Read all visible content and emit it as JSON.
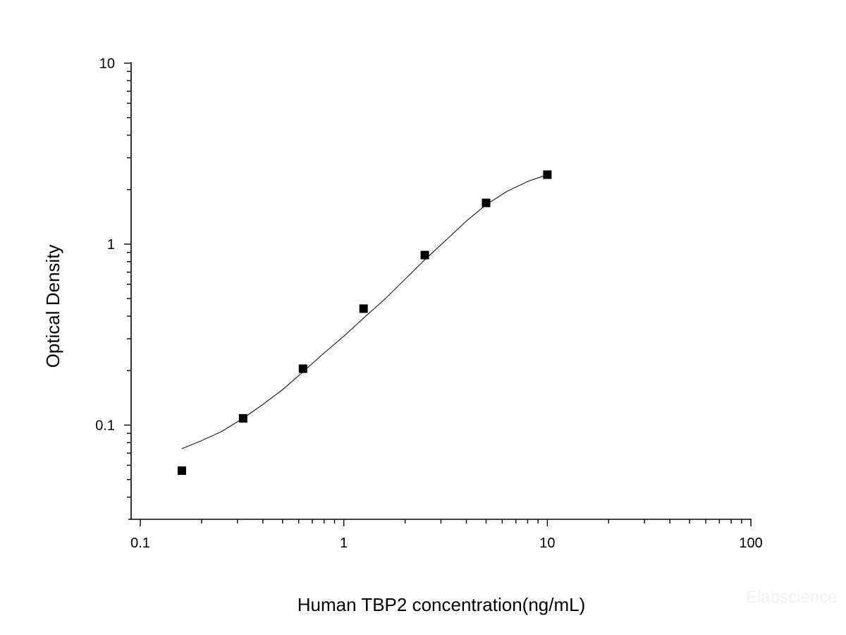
{
  "chart_data": {
    "type": "scatter",
    "xlabel": "Human TBP2 concentration(ng/mL)",
    "ylabel": "Optical Density",
    "x_scale": "log",
    "y_scale": "log",
    "xlim": [
      0.1,
      100
    ],
    "ylim": [
      0.0316,
      10
    ],
    "x_ticks": [
      {
        "value": 0.1,
        "label": "0.1"
      },
      {
        "value": 1,
        "label": "1"
      },
      {
        "value": 10,
        "label": "10"
      },
      {
        "value": 100,
        "label": "100"
      }
    ],
    "y_ticks": [
      {
        "value": 0.1,
        "label": "0.1"
      },
      {
        "value": 1,
        "label": "1"
      },
      {
        "value": 10,
        "label": "10"
      }
    ],
    "grid": false,
    "series": [
      {
        "type": "scatter",
        "marker": "square",
        "color": "#000000",
        "points": [
          {
            "x": 0.16,
            "y": 0.056
          },
          {
            "x": 0.32,
            "y": 0.109
          },
          {
            "x": 0.63,
            "y": 0.205
          },
          {
            "x": 1.25,
            "y": 0.44
          },
          {
            "x": 2.5,
            "y": 0.87
          },
          {
            "x": 5,
            "y": 1.69
          },
          {
            "x": 10,
            "y": 2.42
          }
        ]
      },
      {
        "type": "line",
        "style": "fit-curve",
        "color": "#000000",
        "points": [
          {
            "x": 0.16,
            "y": 0.074
          },
          {
            "x": 0.2,
            "y": 0.082
          },
          {
            "x": 0.25,
            "y": 0.092
          },
          {
            "x": 0.32,
            "y": 0.109
          },
          {
            "x": 0.4,
            "y": 0.13
          },
          {
            "x": 0.5,
            "y": 0.157
          },
          {
            "x": 0.63,
            "y": 0.197
          },
          {
            "x": 0.8,
            "y": 0.25
          },
          {
            "x": 1.0,
            "y": 0.31
          },
          {
            "x": 1.25,
            "y": 0.39
          },
          {
            "x": 1.6,
            "y": 0.5
          },
          {
            "x": 2.0,
            "y": 0.64
          },
          {
            "x": 2.5,
            "y": 0.82
          },
          {
            "x": 3.2,
            "y": 1.06
          },
          {
            "x": 4.0,
            "y": 1.34
          },
          {
            "x": 5.0,
            "y": 1.65
          },
          {
            "x": 6.3,
            "y": 1.95
          },
          {
            "x": 8.0,
            "y": 2.22
          },
          {
            "x": 10,
            "y": 2.42
          }
        ]
      }
    ]
  },
  "watermark": "Elabscience"
}
